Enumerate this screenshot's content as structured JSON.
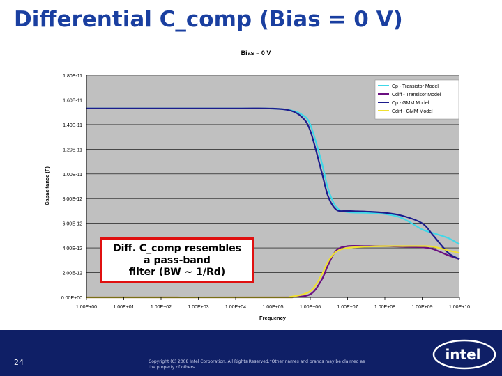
{
  "slide": {
    "title": "Differential C_comp (Bias = 0 V)",
    "callout": "Diff. C_comp resembles\na pass-band\nfilter (BW ~ 1/Rd)",
    "page_number": "24",
    "copyright": "Copyright (C) 2008 Intel Corporation. All Rights Reserved.*Other names and brands may be claimed as the property of others",
    "logo_text": "intel"
  },
  "colors": {
    "plot_background": "#c0c0c0",
    "footer": "#0f1f66",
    "title": "#1a3fa0",
    "callout_border": "#e01010"
  },
  "chart_data": {
    "type": "line",
    "title": "Bias = 0 V",
    "xlabel": "Frequency",
    "ylabel": "Capacitance (F)",
    "x_scale": "log",
    "xlim": [
      1,
      10000000000
    ],
    "ylim": [
      0,
      1.8e-11
    ],
    "grid": "horizontal",
    "legend_position": "top-right",
    "x_ticks": [
      "1.00E+00",
      "1.00E+01",
      "1.00E+02",
      "1.00E+03",
      "1.00E+04",
      "1.00E+05",
      "1.00E+06",
      "1.00E+07",
      "1.00E+08",
      "1.00E+09",
      "1.00E+10"
    ],
    "x_tick_values": [
      1,
      10,
      100,
      1000,
      10000,
      100000,
      1000000,
      10000000,
      100000000,
      1000000000,
      10000000000
    ],
    "y_ticks": [
      "0.00E+00",
      "2.00E-12",
      "4.00E-12",
      "6.00E-12",
      "8.00E-12",
      "1.00E-11",
      "1.20E-11",
      "1.40E-11",
      "1.60E-11",
      "1.80E-11"
    ],
    "y_tick_values": [
      0,
      2e-12,
      4e-12,
      6e-12,
      8e-12,
      1e-11,
      1.2e-11,
      1.4e-11,
      1.6e-11,
      1.8e-11
    ],
    "series": [
      {
        "name": "Cp - Transistor Model",
        "color": "#40d8e8",
        "x": [
          1,
          100,
          10000,
          100000,
          300000,
          600000,
          1000000,
          2000000,
          3000000,
          5000000,
          10000000,
          30000000,
          100000000,
          300000000,
          1000000000,
          2000000000,
          5000000000,
          10000000000
        ],
        "y": [
          1.53e-11,
          1.53e-11,
          1.53e-11,
          1.529e-11,
          1.515e-11,
          1.48e-11,
          1.4e-11,
          1.1e-11,
          8.8e-12,
          7.3e-12,
          6.9e-12,
          6.85e-12,
          6.75e-12,
          6.4e-12,
          5.5e-12,
          5.2e-12,
          4.8e-12,
          4.3e-12
        ]
      },
      {
        "name": "Cdiff - Transisor Model",
        "color": "#6a0f80",
        "x": [
          1,
          100000,
          300000,
          1000000,
          2000000,
          3000000,
          5000000,
          10000000,
          30000000,
          100000000,
          300000000,
          1000000000,
          2000000000,
          5000000000,
          10000000000
        ],
        "y": [
          0,
          0,
          2e-14,
          2.5e-13,
          1.4e-12,
          2.6e-12,
          3.8e-12,
          4.15e-12,
          4.15e-12,
          4.15e-12,
          4.1e-12,
          4.05e-12,
          3.9e-12,
          3.4e-12,
          3.1e-12
        ]
      },
      {
        "name": "Cp - GMM Model",
        "color": "#1c1c8c",
        "x": [
          1,
          100,
          10000,
          100000,
          300000,
          600000,
          1000000,
          2000000,
          3000000,
          5000000,
          10000000,
          30000000,
          100000000,
          300000000,
          1000000000,
          2000000000,
          5000000000,
          10000000000
        ],
        "y": [
          1.53e-11,
          1.53e-11,
          1.53e-11,
          1.529e-11,
          1.512e-11,
          1.46e-11,
          1.35e-11,
          1.02e-11,
          8.2e-12,
          7.1e-12,
          7e-12,
          6.95e-12,
          6.85e-12,
          6.6e-12,
          6e-12,
          5e-12,
          3.6e-12,
          3.1e-12
        ]
      },
      {
        "name": "Cdiff - GMM Model",
        "color": "#f0e030",
        "x": [
          1,
          100000,
          300000,
          1000000,
          2000000,
          3000000,
          5000000,
          10000000,
          30000000,
          100000000,
          300000000,
          1000000000,
          2000000000,
          5000000000,
          10000000000
        ],
        "y": [
          0,
          0,
          5e-14,
          5e-13,
          1.8e-12,
          2.9e-12,
          3.7e-12,
          4e-12,
          4.1e-12,
          4.15e-12,
          4.15e-12,
          4.15e-12,
          4.1e-12,
          3.8e-12,
          3.6e-12
        ]
      }
    ]
  }
}
